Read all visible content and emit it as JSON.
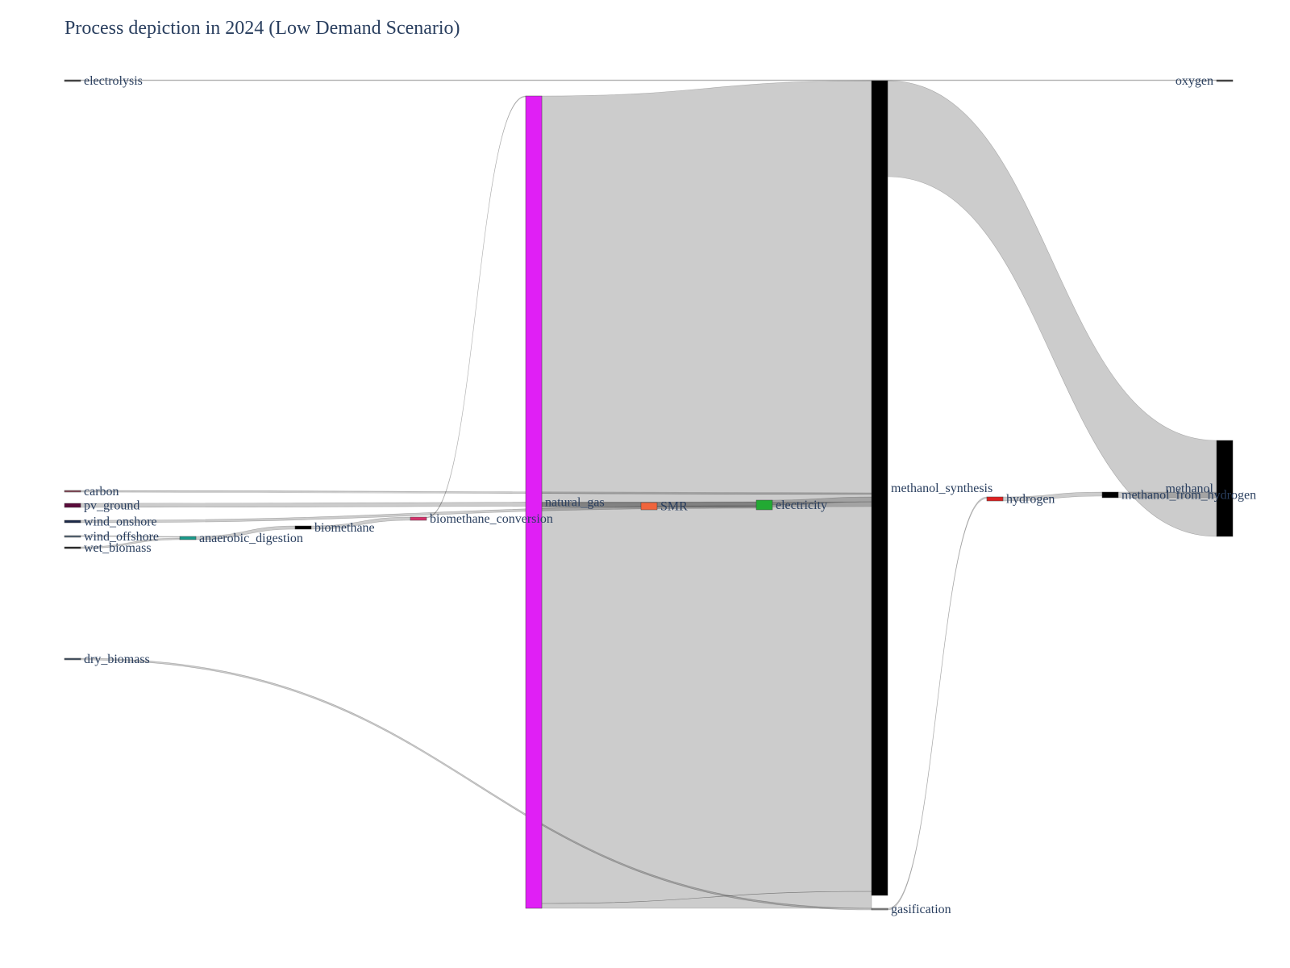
{
  "title": "Process depiction in 2024 (Low Demand Scenario)",
  "chart_data": {
    "type": "sankey",
    "title": "Process depiction in 2024 (Low Demand Scenario)",
    "nodes": [
      {
        "id": "electrolysis",
        "label": "electrolysis",
        "color": "#444444"
      },
      {
        "id": "carbon",
        "label": "carbon",
        "color": "#8c4a5a"
      },
      {
        "id": "pv_ground",
        "label": "pv_ground",
        "color": "#5a0a3a"
      },
      {
        "id": "wind_onshore",
        "label": "wind_onshore",
        "color": "#1c2a4a"
      },
      {
        "id": "wind_offshore",
        "label": "wind_offshore",
        "color": "#556677"
      },
      {
        "id": "wet_biomass",
        "label": "wet_biomass",
        "color": "#222222"
      },
      {
        "id": "dry_biomass",
        "label": "dry_biomass",
        "color": "#445566"
      },
      {
        "id": "anaerobic_digestion",
        "label": "anaerobic_digestion",
        "color": "#1a9a8a"
      },
      {
        "id": "biomethane",
        "label": "biomethane",
        "color": "#000000"
      },
      {
        "id": "biomethane_conversion",
        "label": "biomethane_conversion",
        "color": "#d6336c"
      },
      {
        "id": "natural_gas",
        "label": "natural_gas",
        "color": "#e01ff5"
      },
      {
        "id": "SMR",
        "label": "SMR",
        "color": "#f0643c"
      },
      {
        "id": "electricity",
        "label": "electricity",
        "color": "#22aa33"
      },
      {
        "id": "methanol_synthesis",
        "label": "methanol_synthesis",
        "color": "#000000"
      },
      {
        "id": "gasification",
        "label": "gasification",
        "color": "#888888"
      },
      {
        "id": "hydrogen",
        "label": "hydrogen",
        "color": "#dd2222"
      },
      {
        "id": "methanol_from_hydrogen",
        "label": "methanol_from_hydrogen",
        "color": "#000000"
      },
      {
        "id": "oxygen",
        "label": "oxygen",
        "color": "#444444"
      },
      {
        "id": "methanol",
        "label": "methanol",
        "color": "#000000"
      }
    ],
    "links": [
      {
        "source": "natural_gas",
        "target": "methanol_synthesis",
        "value": 100
      },
      {
        "source": "methanol_synthesis",
        "target": "methanol",
        "value": 12
      },
      {
        "source": "natural_gas",
        "target": "SMR",
        "value": 1.0
      },
      {
        "source": "SMR",
        "target": "methanol_synthesis",
        "value": 1.0
      },
      {
        "source": "pv_ground",
        "target": "electricity",
        "value": 0.8
      },
      {
        "source": "wind_onshore",
        "target": "electricity",
        "value": 0.35
      },
      {
        "source": "electricity",
        "target": "methanol_synthesis",
        "value": 1.0
      },
      {
        "source": "electricity",
        "target": "electrolysis",
        "value": 0.1
      },
      {
        "source": "carbon",
        "target": "methanol_synthesis",
        "value": 0.12
      },
      {
        "source": "wind_offshore",
        "target": "anaerobic_digestion",
        "value": 0.1
      },
      {
        "source": "wet_biomass",
        "target": "anaerobic_digestion",
        "value": 0.15
      },
      {
        "source": "anaerobic_digestion",
        "target": "biomethane",
        "value": 0.2
      },
      {
        "source": "biomethane",
        "target": "biomethane_conversion",
        "value": 0.2
      },
      {
        "source": "biomethane_conversion",
        "target": "natural_gas",
        "value": 0.1
      },
      {
        "source": "dry_biomass",
        "target": "gasification",
        "value": 0.1
      },
      {
        "source": "gasification",
        "target": "hydrogen",
        "value": 0.1
      },
      {
        "source": "hydrogen",
        "target": "methanol_from_hydrogen",
        "value": 0.2
      },
      {
        "source": "methanol_from_hydrogen",
        "target": "methanol",
        "value": 0.3
      },
      {
        "source": "electrolysis",
        "target": "oxygen",
        "value": 0.05
      }
    ]
  }
}
